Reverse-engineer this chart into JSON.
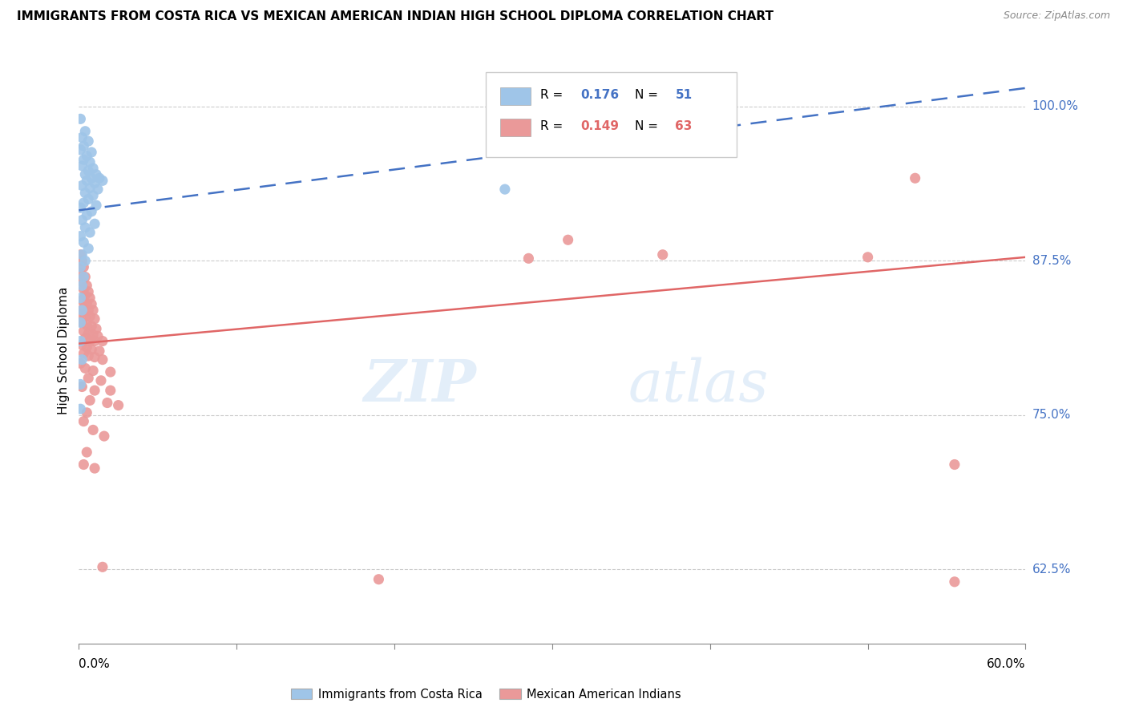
{
  "title": "IMMIGRANTS FROM COSTA RICA VS MEXICAN AMERICAN INDIAN HIGH SCHOOL DIPLOMA CORRELATION CHART",
  "source": "Source: ZipAtlas.com",
  "ylabel": "High School Diploma",
  "right_yticks": [
    "100.0%",
    "87.5%",
    "75.0%",
    "62.5%"
  ],
  "right_ytick_vals": [
    1.0,
    0.875,
    0.75,
    0.625
  ],
  "blue_color": "#9fc5e8",
  "pink_color": "#ea9999",
  "trend_blue": "#4472c4",
  "trend_pink": "#e06666",
  "xlim": [
    0.0,
    0.6
  ],
  "ylim": [
    0.565,
    1.04
  ],
  "blue_trend_x": [
    0.0,
    0.6
  ],
  "blue_trend_y": [
    0.916,
    1.015
  ],
  "pink_trend_x": [
    0.0,
    0.6
  ],
  "pink_trend_y": [
    0.808,
    0.878
  ],
  "blue_scatter": [
    [
      0.001,
      0.99
    ],
    [
      0.004,
      0.98
    ],
    [
      0.002,
      0.975
    ],
    [
      0.006,
      0.972
    ],
    [
      0.003,
      0.968
    ],
    [
      0.001,
      0.965
    ],
    [
      0.008,
      0.963
    ],
    [
      0.005,
      0.96
    ],
    [
      0.003,
      0.957
    ],
    [
      0.007,
      0.955
    ],
    [
      0.002,
      0.952
    ],
    [
      0.009,
      0.95
    ],
    [
      0.006,
      0.948
    ],
    [
      0.004,
      0.945
    ],
    [
      0.011,
      0.945
    ],
    [
      0.008,
      0.942
    ],
    [
      0.013,
      0.942
    ],
    [
      0.005,
      0.94
    ],
    [
      0.01,
      0.938
    ],
    [
      0.015,
      0.94
    ],
    [
      0.002,
      0.936
    ],
    [
      0.007,
      0.934
    ],
    [
      0.012,
      0.933
    ],
    [
      0.004,
      0.93
    ],
    [
      0.009,
      0.928
    ],
    [
      0.006,
      0.925
    ],
    [
      0.003,
      0.922
    ],
    [
      0.011,
      0.92
    ],
    [
      0.001,
      0.918
    ],
    [
      0.008,
      0.915
    ],
    [
      0.005,
      0.912
    ],
    [
      0.002,
      0.908
    ],
    [
      0.01,
      0.905
    ],
    [
      0.004,
      0.902
    ],
    [
      0.007,
      0.898
    ],
    [
      0.001,
      0.895
    ],
    [
      0.003,
      0.89
    ],
    [
      0.006,
      0.885
    ],
    [
      0.002,
      0.88
    ],
    [
      0.004,
      0.875
    ],
    [
      0.001,
      0.87
    ],
    [
      0.003,
      0.862
    ],
    [
      0.002,
      0.855
    ],
    [
      0.001,
      0.845
    ],
    [
      0.002,
      0.835
    ],
    [
      0.001,
      0.825
    ],
    [
      0.001,
      0.81
    ],
    [
      0.002,
      0.795
    ],
    [
      0.001,
      0.775
    ],
    [
      0.001,
      0.755
    ],
    [
      0.27,
      0.933
    ]
  ],
  "pink_scatter": [
    [
      0.001,
      0.88
    ],
    [
      0.002,
      0.875
    ],
    [
      0.003,
      0.87
    ],
    [
      0.001,
      0.865
    ],
    [
      0.004,
      0.862
    ],
    [
      0.002,
      0.858
    ],
    [
      0.005,
      0.855
    ],
    [
      0.003,
      0.852
    ],
    [
      0.006,
      0.85
    ],
    [
      0.004,
      0.847
    ],
    [
      0.007,
      0.845
    ],
    [
      0.002,
      0.843
    ],
    [
      0.005,
      0.84
    ],
    [
      0.008,
      0.84
    ],
    [
      0.003,
      0.837
    ],
    [
      0.006,
      0.835
    ],
    [
      0.009,
      0.835
    ],
    [
      0.001,
      0.832
    ],
    [
      0.004,
      0.83
    ],
    [
      0.007,
      0.83
    ],
    [
      0.01,
      0.828
    ],
    [
      0.002,
      0.825
    ],
    [
      0.005,
      0.823
    ],
    [
      0.008,
      0.822
    ],
    [
      0.011,
      0.82
    ],
    [
      0.003,
      0.818
    ],
    [
      0.006,
      0.816
    ],
    [
      0.009,
      0.815
    ],
    [
      0.012,
      0.814
    ],
    [
      0.004,
      0.812
    ],
    [
      0.007,
      0.81
    ],
    [
      0.01,
      0.81
    ],
    [
      0.015,
      0.81
    ],
    [
      0.002,
      0.807
    ],
    [
      0.005,
      0.805
    ],
    [
      0.008,
      0.803
    ],
    [
      0.013,
      0.802
    ],
    [
      0.003,
      0.8
    ],
    [
      0.006,
      0.798
    ],
    [
      0.01,
      0.797
    ],
    [
      0.015,
      0.795
    ],
    [
      0.001,
      0.792
    ],
    [
      0.004,
      0.788
    ],
    [
      0.009,
      0.786
    ],
    [
      0.02,
      0.785
    ],
    [
      0.006,
      0.78
    ],
    [
      0.014,
      0.778
    ],
    [
      0.002,
      0.773
    ],
    [
      0.01,
      0.77
    ],
    [
      0.02,
      0.77
    ],
    [
      0.007,
      0.762
    ],
    [
      0.018,
      0.76
    ],
    [
      0.025,
      0.758
    ],
    [
      0.005,
      0.752
    ],
    [
      0.003,
      0.745
    ],
    [
      0.009,
      0.738
    ],
    [
      0.016,
      0.733
    ],
    [
      0.005,
      0.72
    ],
    [
      0.003,
      0.71
    ],
    [
      0.01,
      0.707
    ],
    [
      0.53,
      0.942
    ],
    [
      0.31,
      0.892
    ],
    [
      0.37,
      0.88
    ],
    [
      0.5,
      0.878
    ],
    [
      0.285,
      0.877
    ],
    [
      0.555,
      0.71
    ],
    [
      0.015,
      0.627
    ],
    [
      0.19,
      0.617
    ],
    [
      0.555,
      0.615
    ]
  ]
}
